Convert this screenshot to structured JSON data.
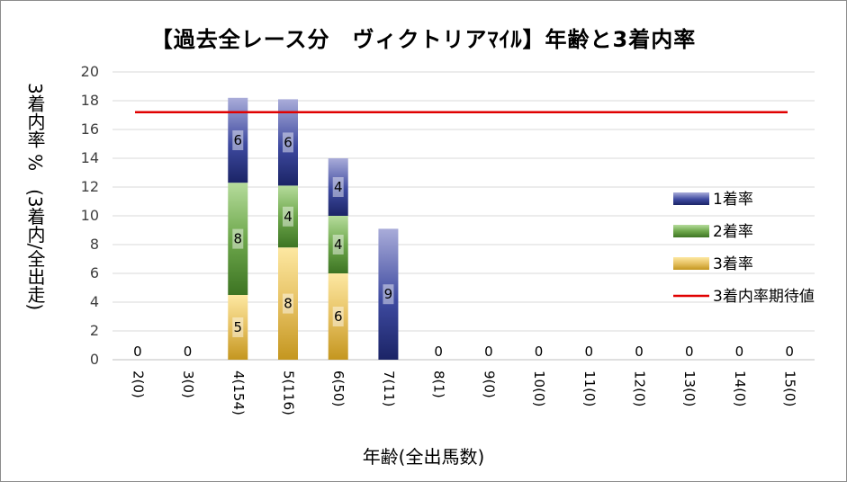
{
  "chart_data": {
    "type": "bar",
    "title": "【過去全レース分　ヴィクトリアﾏｲﾙ】年齢と3着内率",
    "xlabel": "年齢(全出馬数)",
    "ylabel": "3着内率 %　(3着内/全出走)",
    "ylim": [
      0,
      20
    ],
    "yticks": [
      0,
      2,
      4,
      6,
      8,
      10,
      12,
      14,
      16,
      18,
      20
    ],
    "categories": [
      "2(0)",
      "3(0)",
      "4(154)",
      "5(116)",
      "6(50)",
      "7(11)",
      "8(1)",
      "9(0)",
      "10(0)",
      "11(0)",
      "12(0)",
      "13(0)",
      "14(0)",
      "15(0)"
    ],
    "series": [
      {
        "name": "3着率",
        "values": [
          0,
          0,
          4.5,
          7.8,
          6.0,
          0,
          0,
          0,
          0,
          0,
          0,
          0,
          0,
          0
        ],
        "labels": [
          "",
          "",
          "5",
          "8",
          "6",
          "",
          "",
          "",
          "",
          "",
          "",
          "",
          "",
          ""
        ],
        "color": "#d9b44a"
      },
      {
        "name": "2着率",
        "values": [
          0,
          0,
          7.8,
          4.3,
          4.0,
          0,
          0,
          0,
          0,
          0,
          0,
          0,
          0,
          0
        ],
        "labels": [
          "",
          "",
          "8",
          "4",
          "4",
          "",
          "",
          "",
          "",
          "",
          "",
          "",
          "",
          ""
        ],
        "color": "#5b9a3a"
      },
      {
        "name": "1着率",
        "values": [
          0,
          0,
          5.9,
          6.0,
          4.0,
          9.1,
          0,
          0,
          0,
          0,
          0,
          0,
          0,
          0
        ],
        "labels": [
          "0",
          "0",
          "6",
          "6",
          "4",
          "9",
          "0",
          "0",
          "0",
          "0",
          "0",
          "0",
          "0",
          "0"
        ],
        "color": "#3a4494"
      }
    ],
    "reference_line": {
      "name": "3着内率期待値",
      "value": 17.2,
      "color": "#e00000"
    },
    "legend": {
      "position": "right",
      "entries": [
        "1着率",
        "2着率",
        "3着率",
        "3着内率期待値"
      ]
    },
    "grid": true
  }
}
